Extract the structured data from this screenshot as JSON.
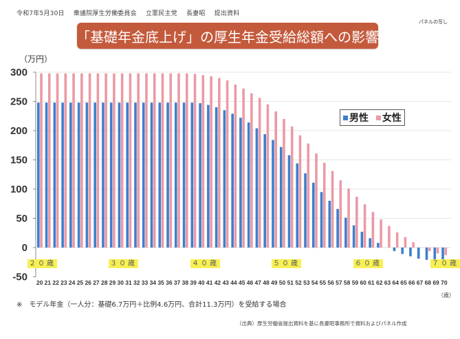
{
  "header": {
    "date": "令和7年5月30日",
    "committee": "衆議院厚生労働委員会",
    "party": "立憲民主党",
    "member": "長妻昭",
    "doc_type": "提出資料",
    "panel_note": "パネルの写し"
  },
  "colors": {
    "title_bg": "#c45a3c",
    "male": "#3d7fcc",
    "female": "#eb9aa5",
    "age_highlight": "#f7f055"
  },
  "age_marks": [
    "２０歳",
    "３０歳",
    "４０歳",
    "５０歳",
    "６０歳",
    "７０歳"
  ],
  "footer": {
    "note": "※　モデル年金（一人分：基礎6.7万円＋比例4.6万円、合計11.3万円）を受給する場合",
    "source": "（出典）厚生労働省提出資料を基に長妻昭事務所で資料およびパネル作成"
  },
  "chart_data": {
    "type": "bar",
    "title": "「基礎年金底上げ」の厚生年金受給総額への影響",
    "ylabel": "（万円）",
    "xlabel": "（歳）",
    "ylim": [
      -50,
      300
    ],
    "yticks": [
      300,
      250,
      200,
      150,
      100,
      50,
      0,
      -50
    ],
    "grid": true,
    "legend_position": "top-right",
    "categories": [
      20,
      21,
      22,
      23,
      24,
      25,
      26,
      27,
      28,
      29,
      30,
      31,
      32,
      33,
      34,
      35,
      36,
      37,
      38,
      39,
      40,
      41,
      42,
      43,
      44,
      45,
      46,
      47,
      48,
      49,
      50,
      51,
      52,
      53,
      54,
      55,
      56,
      57,
      58,
      59,
      60,
      61,
      62,
      63,
      64,
      65,
      66,
      67,
      68,
      69,
      70
    ],
    "series": [
      {
        "name": "男性",
        "values": [
          248,
          248,
          248,
          248,
          248,
          248,
          248,
          248,
          248,
          248,
          248,
          248,
          248,
          248,
          248,
          248,
          248,
          248,
          248,
          248,
          247,
          244,
          240,
          235,
          229,
          222,
          214,
          204,
          194,
          184,
          172,
          158,
          144,
          127,
          111,
          95,
          80,
          66,
          51,
          38,
          27,
          16,
          8,
          0,
          -6,
          -11,
          -15,
          -19,
          -21,
          -22,
          -21
        ]
      },
      {
        "name": "女性",
        "values": [
          298,
          298,
          298,
          298,
          298,
          298,
          298,
          298,
          298,
          298,
          298,
          298,
          298,
          298,
          298,
          298,
          298,
          298,
          298,
          297,
          295,
          293,
          290,
          286,
          279,
          272,
          264,
          256,
          245,
          233,
          220,
          207,
          192,
          178,
          161,
          145,
          131,
          115,
          101,
          87,
          74,
          61,
          48,
          37,
          26,
          18,
          9,
          0,
          -6,
          -10,
          -13
        ]
      }
    ]
  }
}
